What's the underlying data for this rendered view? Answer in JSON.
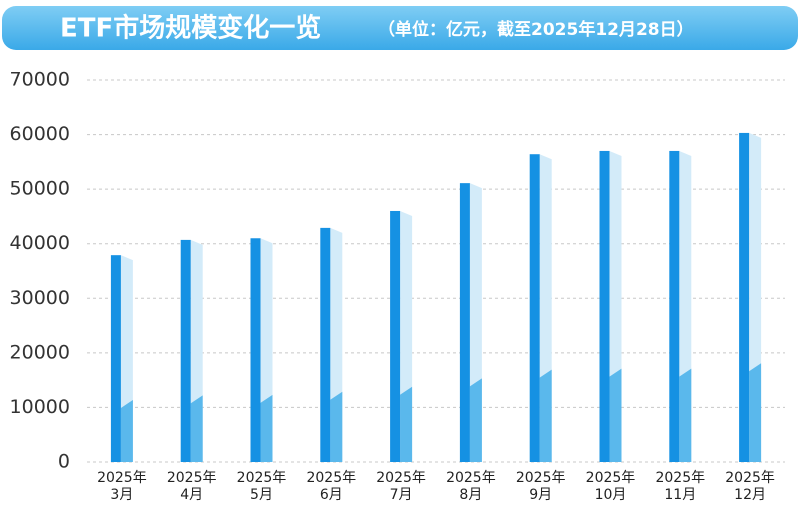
{
  "chart_data": {
    "type": "bar",
    "title": "ETF市场规模变化一览",
    "subtitle": "（单位：亿元，截至2025年12月28日）",
    "categories": [
      "2025年\n3月",
      "2025年\n4月",
      "2025年\n5月",
      "2025年\n6月",
      "2025年\n7月",
      "2025年\n8月",
      "2025年\n9月",
      "2025年\n10月",
      "2025年\n11月",
      "2025年\n12月"
    ],
    "values": [
      37900,
      40700,
      41000,
      42900,
      46000,
      51100,
      56400,
      57000,
      57000,
      60300
    ],
    "color": "#1591e3",
    "ylim": [
      0,
      70000
    ],
    "yticks": [
      0,
      10000,
      20000,
      30000,
      40000,
      50000,
      60000,
      70000
    ],
    "grid": true
  }
}
